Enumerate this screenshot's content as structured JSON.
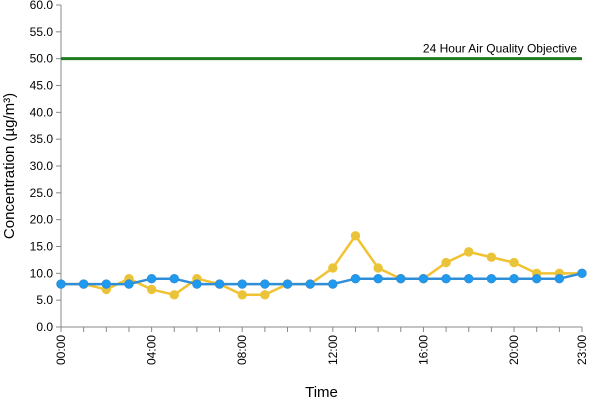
{
  "chart_data": {
    "type": "line",
    "title": "",
    "xlabel": "Time",
    "ylabel": "Concentration (µg/m³)",
    "x": [
      "00:00",
      "01:00",
      "02:00",
      "03:00",
      "04:00",
      "05:00",
      "06:00",
      "07:00",
      "08:00",
      "09:00",
      "10:00",
      "11:00",
      "12:00",
      "13:00",
      "14:00",
      "15:00",
      "16:00",
      "17:00",
      "18:00",
      "19:00",
      "20:00",
      "21:00",
      "22:00",
      "23:00"
    ],
    "x_tick_labels": [
      "00:00",
      "04:00",
      "08:00",
      "12:00",
      "16:00",
      "20:00",
      "23:00"
    ],
    "ylim": [
      0,
      60
    ],
    "y_ticks": [
      "0.0",
      "5.0",
      "10.0",
      "15.0",
      "20.0",
      "25.0",
      "30.0",
      "35.0",
      "40.0",
      "45.0",
      "50.0",
      "55.0",
      "60.0"
    ],
    "grid": false,
    "series": [
      {
        "color": "#f1c232",
        "marker_color": "#e8c43a",
        "values": [
          8,
          8,
          7,
          9,
          7,
          6,
          9,
          8,
          6,
          6,
          8,
          8,
          11,
          17,
          11,
          9,
          9,
          12,
          14,
          13,
          12,
          10,
          10,
          10
        ]
      },
      {
        "color": "#2f8ed8",
        "marker_color": "#1e9bf0",
        "values": [
          8,
          8,
          8,
          8,
          9,
          9,
          8,
          8,
          8,
          8,
          8,
          8,
          8,
          9,
          9,
          9,
          9,
          9,
          9,
          9,
          9,
          9,
          9,
          10
        ]
      }
    ],
    "reference_line": {
      "value": 50,
      "label": "24 Hour Air Quality Objective",
      "color": "#1e7b1e"
    }
  }
}
